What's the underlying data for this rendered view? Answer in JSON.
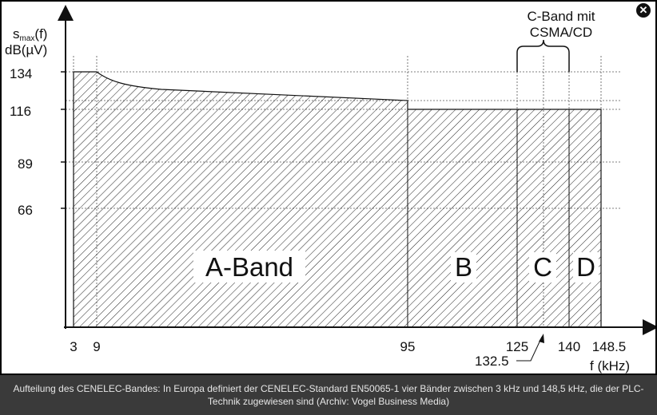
{
  "close_glyph": "✕",
  "caption": "Aufteilung des CENELEC-Bandes: In Europa definiert der CENELEC-Standard EN50065-1 vier Bänder zwischen 3 kHz und 148,5 kHz, die der PLC-Technik zugewiesen sind (Archiv: Vogel Business Media)",
  "diagram": {
    "y_axis_label_base": "s",
    "y_axis_label_sub": "max",
    "y_axis_label_suffix": "(f)",
    "y_axis_unit": "dB(µV)",
    "x_axis_label": "f (kHz)",
    "y_ticks": [
      "134",
      "116",
      "89",
      "66"
    ],
    "x_ticks": [
      "3",
      "9",
      "95",
      "125",
      "140",
      "148.5"
    ],
    "x_tick_below": "132.5",
    "band_labels": {
      "a": "A-Band",
      "b": "B",
      "c": "C",
      "d": "D"
    },
    "c_band_annotation_line1": "C-Band mit",
    "c_band_annotation_line2": "CSMA/CD"
  },
  "colors": {
    "caption_bg": "#3a3a3a",
    "ink": "#111111"
  }
}
